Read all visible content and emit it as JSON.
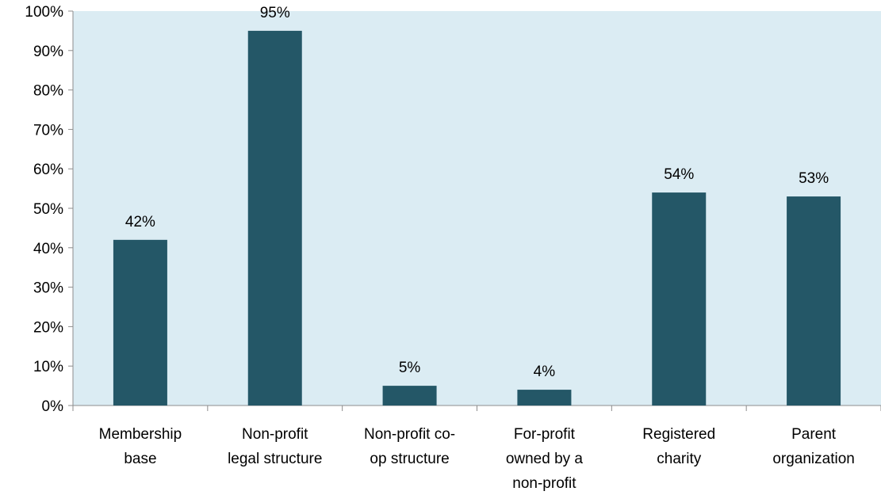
{
  "chart_data": {
    "type": "bar",
    "title": "",
    "xlabel": "",
    "ylabel": "",
    "ylim": [
      0,
      100
    ],
    "y_ticks": [
      "0%",
      "10%",
      "20%",
      "30%",
      "40%",
      "50%",
      "60%",
      "70%",
      "80%",
      "90%",
      "100%"
    ],
    "categories": [
      [
        "Membership",
        "base"
      ],
      [
        "Non-profit",
        "legal structure"
      ],
      [
        "Non-profit co-",
        "op structure"
      ],
      [
        "For-profit",
        "owned by a",
        "non-profit"
      ],
      [
        "Registered",
        "charity"
      ],
      [
        "Parent",
        "organization"
      ]
    ],
    "values": [
      42,
      95,
      5,
      4,
      54,
      53
    ],
    "data_labels": [
      "42%",
      "95%",
      "5%",
      "4%",
      "54%",
      "53%"
    ],
    "grid": false,
    "legend": "none",
    "colors": {
      "bar": "#245767",
      "plot_background": "#dbecf3",
      "axis": "#8c8c8c"
    }
  }
}
